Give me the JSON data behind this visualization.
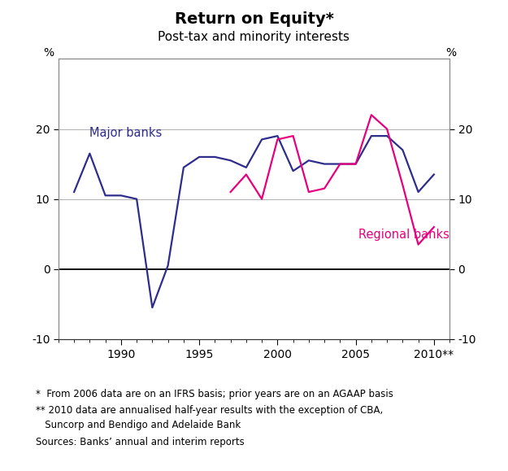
{
  "title": "Return on Equity*",
  "subtitle": "Post-tax and minority interests",
  "major_banks_x": [
    1987,
    1988,
    1989,
    1990,
    1991,
    1992,
    1993,
    1994,
    1995,
    1996,
    1997,
    1998,
    1999,
    2000,
    2001,
    2002,
    2003,
    2004,
    2005,
    2006,
    2007,
    2008,
    2009,
    2010
  ],
  "major_banks_y": [
    11.0,
    16.5,
    10.5,
    10.5,
    10.0,
    -5.5,
    0.5,
    14.5,
    16.0,
    16.0,
    15.5,
    14.5,
    18.5,
    19.0,
    14.0,
    15.5,
    15.0,
    15.0,
    15.0,
    19.0,
    19.0,
    17.0,
    11.0,
    13.5
  ],
  "regional_banks_x": [
    1997,
    1998,
    1999,
    2000,
    2001,
    2002,
    2003,
    2004,
    2005,
    2006,
    2007,
    2008,
    2009,
    2010
  ],
  "regional_banks_y": [
    11.0,
    13.5,
    10.0,
    18.5,
    19.0,
    11.0,
    11.5,
    15.0,
    15.0,
    22.0,
    20.0,
    12.0,
    3.5,
    6.0
  ],
  "major_color": "#2e2d8c",
  "regional_color": "#e6007e",
  "xlim": [
    1986,
    2011
  ],
  "ylim": [
    -10,
    30
  ],
  "yticks": [
    -10,
    0,
    10,
    20
  ],
  "xticks": [
    1990,
    1995,
    2000,
    2005,
    2010
  ],
  "footnote1": "*  From 2006 data are on an IFRS basis; prior years are on an AGAAP basis",
  "footnote2": "** 2010 data are annualised half-year results with the exception of CBA,",
  "footnote2b": "   Suncorp and Bendigo and Adelaide Bank",
  "footnote3": "Sources: Banks’ annual and interim reports",
  "ylabel_left": "%",
  "ylabel_right": "%",
  "major_label": "Major banks",
  "regional_label": "Regional banks",
  "grid_color": "#b0b0b0",
  "zero_line_color": "#000000",
  "spine_color": "#888888"
}
